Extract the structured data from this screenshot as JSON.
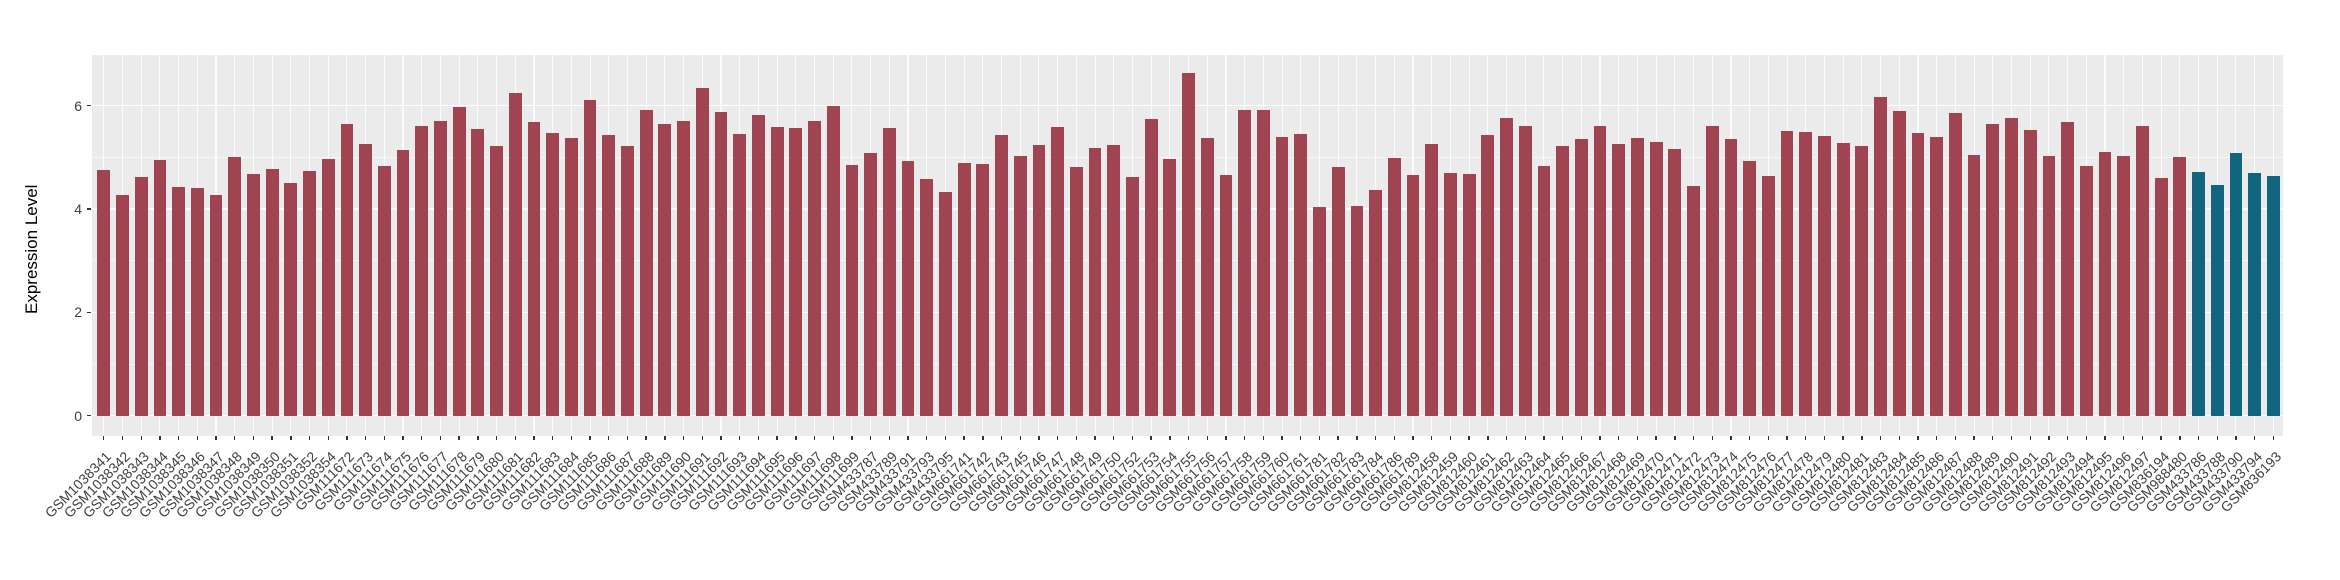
{
  "chart_data": {
    "type": "bar",
    "title": "",
    "xlabel": "",
    "ylabel": "Expression Level",
    "yticks": [
      0,
      2,
      4,
      6
    ],
    "yticks_minor": [
      1,
      3,
      5
    ],
    "ylim": [
      -0.39,
      6.98
    ],
    "grid": "white major+minor horizontal and per-category vertical lines on gray panel",
    "legend_position": "none",
    "panel_background": "#EBEBEB",
    "gridline_color": "#FFFFFF",
    "axis_text_color": "#404040",
    "bar_color_default": "#A04452",
    "bar_color_highlight": "#11657F",
    "highlight_categories": [
      "GSM433786",
      "GSM433788",
      "GSM433790",
      "GSM433794",
      "GSM836193"
    ],
    "categories": [
      "GSM1038341",
      "GSM1038342",
      "GSM1038343",
      "GSM1038344",
      "GSM1038345",
      "GSM1038346",
      "GSM1038347",
      "GSM1038348",
      "GSM1038349",
      "GSM1038350",
      "GSM1038351",
      "GSM1038352",
      "GSM1038354",
      "GSM111672",
      "GSM111673",
      "GSM111674",
      "GSM111675",
      "GSM111676",
      "GSM111677",
      "GSM111678",
      "GSM111679",
      "GSM111680",
      "GSM111681",
      "GSM111682",
      "GSM111683",
      "GSM111684",
      "GSM111685",
      "GSM111686",
      "GSM111687",
      "GSM111688",
      "GSM111689",
      "GSM111690",
      "GSM111691",
      "GSM111692",
      "GSM111693",
      "GSM111694",
      "GSM111695",
      "GSM111696",
      "GSM111697",
      "GSM111698",
      "GSM111699",
      "GSM433787",
      "GSM433789",
      "GSM433791",
      "GSM433793",
      "GSM433795",
      "GSM661741",
      "GSM661742",
      "GSM661743",
      "GSM661745",
      "GSM661746",
      "GSM661747",
      "GSM661748",
      "GSM661749",
      "GSM661750",
      "GSM661752",
      "GSM661753",
      "GSM661754",
      "GSM661755",
      "GSM661756",
      "GSM661757",
      "GSM661758",
      "GSM661759",
      "GSM661760",
      "GSM661761",
      "GSM661781",
      "GSM661782",
      "GSM661783",
      "GSM661784",
      "GSM661786",
      "GSM661789",
      "GSM812458",
      "GSM812459",
      "GSM812460",
      "GSM812461",
      "GSM812462",
      "GSM812463",
      "GSM812464",
      "GSM812465",
      "GSM812466",
      "GSM812467",
      "GSM812468",
      "GSM812469",
      "GSM812470",
      "GSM812471",
      "GSM812472",
      "GSM812473",
      "GSM812474",
      "GSM812475",
      "GSM812476",
      "GSM812477",
      "GSM812478",
      "GSM812479",
      "GSM812480",
      "GSM812481",
      "GSM812483",
      "GSM812484",
      "GSM812485",
      "GSM812486",
      "GSM812487",
      "GSM812488",
      "GSM812489",
      "GSM812490",
      "GSM812491",
      "GSM812492",
      "GSM812493",
      "GSM812494",
      "GSM812495",
      "GSM812496",
      "GSM812497",
      "GSM836194",
      "GSM988480",
      "GSM433786",
      "GSM433788",
      "GSM433790",
      "GSM433794",
      "GSM836193"
    ],
    "values": [
      4.75,
      4.28,
      4.62,
      4.95,
      4.43,
      4.4,
      4.28,
      5.0,
      4.68,
      4.78,
      4.5,
      4.73,
      4.96,
      5.65,
      5.26,
      4.83,
      5.14,
      5.61,
      5.7,
      5.97,
      5.55,
      5.21,
      6.24,
      5.69,
      5.48,
      5.37,
      6.11,
      5.43,
      5.22,
      5.91,
      5.64,
      5.71,
      6.34,
      5.87,
      5.45,
      5.81,
      5.59,
      5.56,
      5.7,
      5.99,
      4.86,
      5.09,
      5.57,
      4.93,
      4.59,
      4.33,
      4.89,
      4.87,
      5.43,
      5.02,
      5.23,
      5.59,
      4.82,
      5.19,
      5.23,
      4.62,
      5.75,
      4.97,
      6.63,
      5.38,
      4.66,
      5.91,
      5.91,
      5.39,
      5.46,
      4.04,
      4.82,
      4.05,
      4.36,
      4.99,
      4.66,
      5.26,
      4.7,
      4.67,
      5.43,
      5.77,
      5.61,
      4.84,
      5.22,
      5.35,
      5.61,
      5.26,
      5.38,
      5.3,
      5.17,
      4.45,
      5.61,
      5.36,
      4.92,
      4.63,
      5.51,
      5.5,
      5.41,
      5.27,
      5.21,
      6.16,
      5.9,
      5.47,
      5.39,
      5.86,
      5.04,
      5.65,
      5.77,
      5.52,
      5.03,
      5.68,
      4.83,
      5.1,
      5.03,
      5.61,
      4.61,
      5.01,
      4.71,
      4.46,
      5.08,
      4.7,
      4.63
    ]
  }
}
